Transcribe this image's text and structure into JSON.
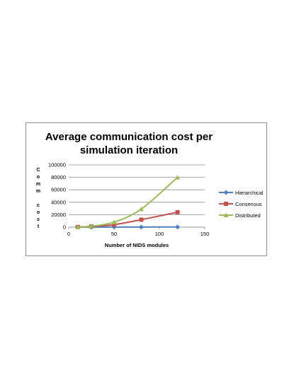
{
  "chart_data": {
    "type": "line",
    "title": "Average communication cost per simulation iteration",
    "xlabel": "Number of NIDS modules",
    "ylabel": "Comm cost",
    "xlim": [
      0,
      150
    ],
    "ylim": [
      0,
      100000
    ],
    "xticks": [
      "0",
      "50",
      "100",
      "150"
    ],
    "yticks": [
      "0",
      "20000",
      "40000",
      "60000",
      "80000",
      "100000"
    ],
    "grid": true,
    "legend": "right",
    "series": [
      {
        "name": "Hierarchical",
        "color": "#4f81bd",
        "marker": "diamond",
        "x": [
          10,
          25,
          50,
          80,
          120
        ],
        "y": [
          0,
          0,
          100,
          200,
          300
        ]
      },
      {
        "name": "Consensus",
        "color": "#c0504d",
        "marker": "square",
        "x": [
          10,
          25,
          50,
          80,
          120
        ],
        "y": [
          200,
          1000,
          4000,
          12000,
          24000
        ]
      },
      {
        "name": "Distributed",
        "color": "#9bbb59",
        "marker": "triangle",
        "x": [
          10,
          25,
          50,
          80,
          120
        ],
        "y": [
          200,
          1500,
          8000,
          29000,
          80000
        ]
      }
    ]
  }
}
